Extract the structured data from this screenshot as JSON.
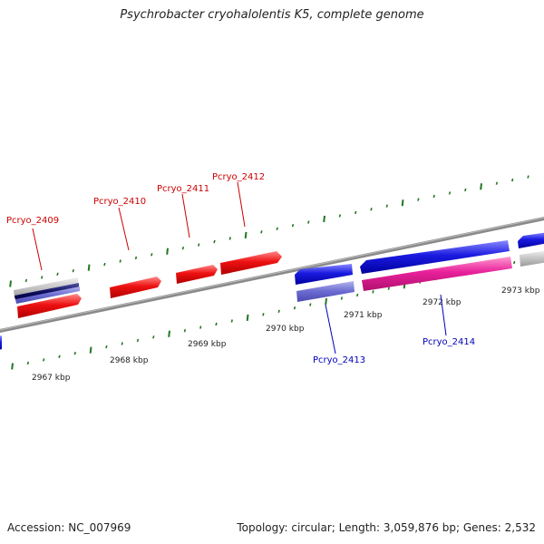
{
  "title": "Psychrobacter cryohalolentis K5, complete genome",
  "footer": {
    "accession": "Accession: NC_007969",
    "summary": "Topology: circular; Length: 3,059,876 bp; Genes: 2,532"
  },
  "colors": {
    "forward_gene": "#ee1111",
    "reverse_gene": "#1a1ae0",
    "forward_label": "#cc0000",
    "reverse_label": "#0000bb",
    "tick": "#227722",
    "backbone": "#888888"
  },
  "scale_labels": [
    "2967 kbp",
    "2968 kbp",
    "2969 kbp",
    "2970 kbp",
    "2971 kbp",
    "2972 kbp",
    "2973 kbp"
  ],
  "gene_labels": [
    {
      "text": "Pcryo_2409",
      "strand": "forward"
    },
    {
      "text": "Pcryo_2410",
      "strand": "forward"
    },
    {
      "text": "Pcryo_2411",
      "strand": "forward"
    },
    {
      "text": "Pcryo_2412",
      "strand": "forward"
    },
    {
      "text": "Pcryo_2413",
      "strand": "reverse"
    },
    {
      "text": "Pcryo_2414",
      "strand": "reverse"
    }
  ]
}
